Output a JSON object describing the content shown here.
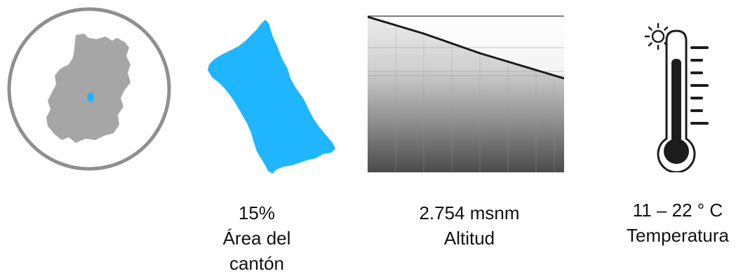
{
  "stats": {
    "area": {
      "value": "15%",
      "label_line1": "Área del",
      "label_line2": "cantón",
      "icon": "canton-area-shape-icon"
    },
    "altitude": {
      "value": "2.754 msnm",
      "label": "Altitud",
      "icon": "altitude-profile-icon"
    },
    "temperature": {
      "value": "11 – 22 ° C",
      "label": "Temperatura",
      "icon": "thermometer-sun-icon"
    }
  },
  "locator": {
    "icon": "canton-locator-map-icon"
  },
  "colors": {
    "highlight_blue": "#1fb6ff",
    "region_gray": "#a6a6a6",
    "ring_gray": "#8f8f8f",
    "profile_line": "#1a1a1a",
    "thermometer_dark": "#1c1c1c"
  }
}
